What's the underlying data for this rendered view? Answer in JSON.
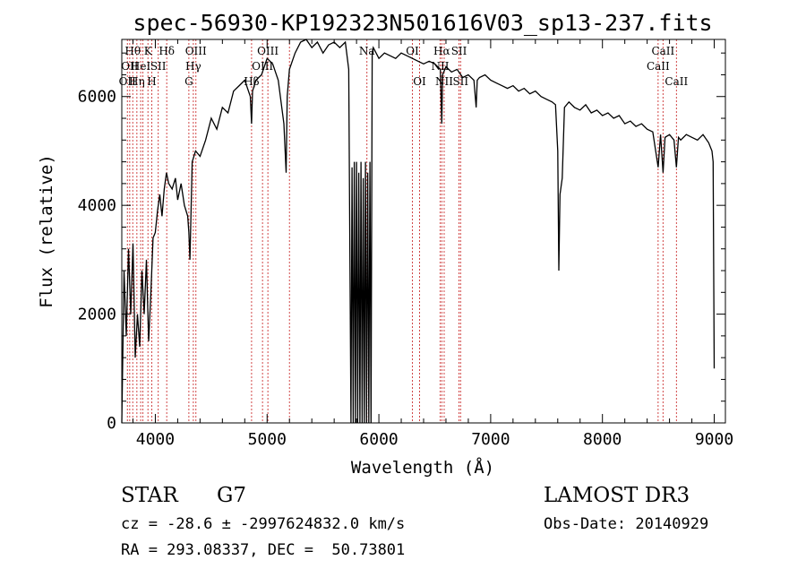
{
  "chart_data": {
    "type": "line",
    "title": "spec-56930-KP192323N501616V03_sp13-237.fits",
    "xlabel": "Wavelength (Å)",
    "ylabel": "Flux (relative)",
    "xlim": [
      3700,
      9100
    ],
    "ylim": [
      0,
      7050
    ],
    "x_ticks": [
      4000,
      5000,
      6000,
      7000,
      8000,
      9000
    ],
    "y_ticks": [
      0,
      2000,
      4000,
      6000
    ],
    "grid": false,
    "series": [
      {
        "x": [
          3700,
          3720,
          3740,
          3760,
          3780,
          3800,
          3820,
          3840,
          3860,
          3880,
          3900,
          3920,
          3940,
          3960,
          3980,
          4000,
          4020,
          4040,
          4060,
          4080,
          4100,
          4120,
          4150,
          4180,
          4200,
          4230,
          4260,
          4290,
          4300,
          4310,
          4330,
          4360,
          4400,
          4450,
          4500,
          4550,
          4600,
          4650,
          4700,
          4750,
          4800,
          4850,
          4861,
          4870,
          4900,
          4950,
          5000,
          5050,
          5100,
          5150,
          5170,
          5180,
          5200,
          5250,
          5300,
          5350,
          5400,
          5450,
          5500,
          5550,
          5600,
          5650,
          5700,
          5730,
          5750,
          5760,
          5770,
          5780,
          5790,
          5800,
          5810,
          5820,
          5830,
          5840,
          5850,
          5860,
          5870,
          5880,
          5890,
          5900,
          5910,
          5920,
          5930,
          5940,
          5950,
          6000,
          6050,
          6100,
          6150,
          6200,
          6250,
          6300,
          6350,
          6400,
          6450,
          6500,
          6550,
          6563,
          6570,
          6600,
          6650,
          6700,
          6750,
          6800,
          6850,
          6870,
          6880,
          6900,
          6950,
          7000,
          7050,
          7100,
          7150,
          7200,
          7250,
          7300,
          7350,
          7400,
          7450,
          7500,
          7550,
          7580,
          7600,
          7610,
          7620,
          7640,
          7660,
          7700,
          7750,
          7800,
          7850,
          7900,
          7950,
          8000,
          8050,
          8100,
          8150,
          8200,
          8250,
          8300,
          8350,
          8400,
          8450,
          8498,
          8520,
          8542,
          8560,
          8600,
          8640,
          8662,
          8680,
          8700,
          8750,
          8800,
          8850,
          8900,
          8950,
          8980,
          8990,
          9000
        ],
        "values": [
          0,
          2800,
          1600,
          3200,
          2000,
          3300,
          1200,
          2000,
          1400,
          2800,
          2000,
          3000,
          1500,
          2400,
          3400,
          3500,
          3900,
          4200,
          3800,
          4300,
          4600,
          4400,
          4300,
          4500,
          4100,
          4400,
          4000,
          3800,
          3500,
          3000,
          4800,
          5000,
          4900,
          5200,
          5600,
          5400,
          5800,
          5700,
          6100,
          6200,
          6300,
          6000,
          5500,
          6100,
          6300,
          6400,
          6700,
          6600,
          6300,
          5500,
          4600,
          6000,
          6500,
          6800,
          7000,
          7050,
          6900,
          7000,
          6800,
          6950,
          7000,
          6900,
          7000,
          6500,
          0,
          4700,
          0,
          4800,
          0,
          4800,
          0,
          4600,
          0,
          4800,
          0,
          4500,
          0,
          4800,
          0,
          4600,
          0,
          4800,
          0,
          6800,
          6900,
          6700,
          6800,
          6750,
          6700,
          6800,
          6750,
          6700,
          6650,
          6600,
          6650,
          6600,
          6500,
          5500,
          6400,
          6550,
          6450,
          6500,
          6350,
          6400,
          6300,
          5800,
          6300,
          6350,
          6400,
          6300,
          6250,
          6200,
          6150,
          6200,
          6100,
          6150,
          6050,
          6100,
          6000,
          5950,
          5900,
          5850,
          5000,
          2800,
          4200,
          4500,
          5800,
          5900,
          5800,
          5750,
          5850,
          5700,
          5750,
          5650,
          5700,
          5600,
          5650,
          5500,
          5550,
          5450,
          5500,
          5400,
          5350,
          4700,
          5300,
          4600,
          5250,
          5300,
          5200,
          4700,
          5250,
          5200,
          5300,
          5250,
          5200,
          5300,
          5150,
          5000,
          4800,
          1000
        ]
      }
    ],
    "lines": [
      {
        "x": 3750,
        "labels": [
          "",
          "",
          "OII"
        ]
      },
      {
        "x": 3771,
        "labels": [
          "",
          "OII",
          ""
        ]
      },
      {
        "x": 3798,
        "labels": [
          "Hθ",
          "",
          ""
        ]
      },
      {
        "x": 3835,
        "labels": [
          "",
          "",
          "Hη"
        ]
      },
      {
        "x": 3869,
        "labels": [
          "",
          "HeI",
          ""
        ]
      },
      {
        "x": 3889,
        "labels": [
          "",
          "",
          ""
        ]
      },
      {
        "x": 3934,
        "labels": [
          "K",
          "",
          ""
        ]
      },
      {
        "x": 3968,
        "labels": [
          "",
          "",
          "H"
        ]
      },
      {
        "x": 4026,
        "labels": [
          "",
          "SII",
          ""
        ]
      },
      {
        "x": 4102,
        "labels": [
          "Hδ",
          "",
          ""
        ]
      },
      {
        "x": 4300,
        "labels": [
          "",
          "",
          "G"
        ]
      },
      {
        "x": 4340,
        "labels": [
          "",
          "Hγ",
          ""
        ]
      },
      {
        "x": 4363,
        "labels": [
          "OIII",
          "",
          ""
        ]
      },
      {
        "x": 4861,
        "labels": [
          "",
          "",
          "Hβ"
        ]
      },
      {
        "x": 4959,
        "labels": [
          "",
          "OIII",
          ""
        ]
      },
      {
        "x": 5007,
        "labels": [
          "OIII",
          "",
          ""
        ]
      },
      {
        "x": 5200,
        "labels": [
          "",
          "",
          ""
        ]
      },
      {
        "x": 5893,
        "labels": [
          "Na",
          "",
          ""
        ]
      },
      {
        "x": 6300,
        "labels": [
          "OI",
          "",
          ""
        ]
      },
      {
        "x": 6364,
        "labels": [
          "",
          "",
          "OI"
        ]
      },
      {
        "x": 6548,
        "labels": [
          "",
          "NII",
          ""
        ]
      },
      {
        "x": 6563,
        "labels": [
          "Hα",
          "",
          ""
        ]
      },
      {
        "x": 6584,
        "labels": [
          "",
          "",
          "NII"
        ]
      },
      {
        "x": 6717,
        "labels": [
          "SII",
          "",
          ""
        ]
      },
      {
        "x": 6731,
        "labels": [
          "",
          "",
          "SII"
        ]
      },
      {
        "x": 8498,
        "labels": [
          "",
          "CaII",
          ""
        ]
      },
      {
        "x": 8542,
        "labels": [
          "CaII",
          "",
          ""
        ]
      },
      {
        "x": 8662,
        "labels": [
          "",
          "",
          "CaII"
        ]
      }
    ]
  },
  "info": {
    "object_class": "STAR",
    "subclass": "G7",
    "survey": "LAMOST DR3",
    "cz_line": "cz = -28.6 ± -2997624832.0 km/s",
    "obs_date": "Obs-Date: 20140929",
    "coords_line": "RA = 293.08337, DEC =  50.73801"
  },
  "colors": {
    "spectrum": "#000000",
    "line_markers": "#cc3333",
    "axes": "#000000"
  }
}
